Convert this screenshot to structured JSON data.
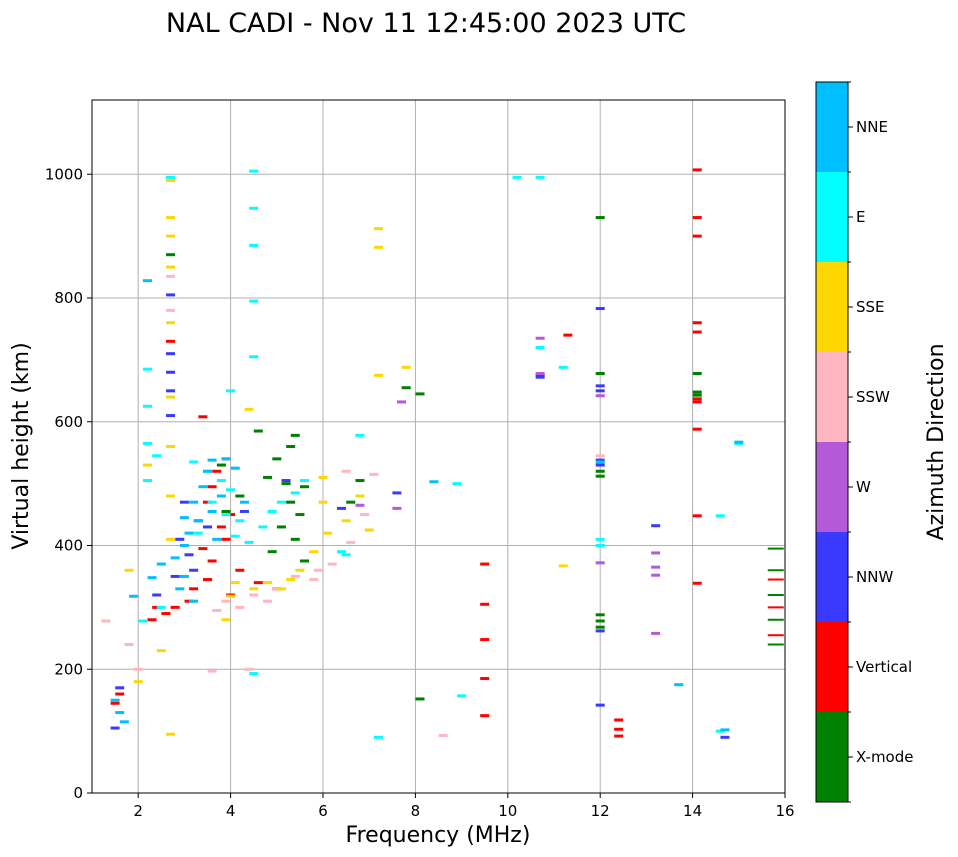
{
  "chart_data": {
    "type": "scatter",
    "title": "NAL CADI - Nov 11 12:45:00 2023 UTC",
    "xlabel": "Frequency (MHz)",
    "ylabel": "Virtual height (km)",
    "xlim": [
      1,
      16
    ],
    "ylim": [
      0,
      1120
    ],
    "xticks": [
      2,
      4,
      6,
      8,
      10,
      12,
      14,
      16
    ],
    "yticks": [
      0,
      200,
      400,
      600,
      800,
      1000
    ],
    "grid": true,
    "colorbar": {
      "label": "Azimuth Direction",
      "categories": [
        {
          "name": "X-mode",
          "color": "#008000"
        },
        {
          "name": "Vertical",
          "color": "#ff0000"
        },
        {
          "name": "NNW",
          "color": "#3a3aff"
        },
        {
          "name": "W",
          "color": "#b45ad8"
        },
        {
          "name": "SSW",
          "color": "#ffb6c1"
        },
        {
          "name": "SSE",
          "color": "#ffd700"
        },
        {
          "name": "E",
          "color": "#00ffff"
        },
        {
          "name": "NNE",
          "color": "#00bfff"
        }
      ]
    },
    "series": [
      {
        "name": "X-mode",
        "points": [
          [
            5.4,
            578
          ],
          [
            5.3,
            560
          ],
          [
            5.0,
            540
          ],
          [
            5.2,
            500
          ],
          [
            5.6,
            495
          ],
          [
            4.8,
            510
          ],
          [
            5.3,
            470
          ],
          [
            5.5,
            450
          ],
          [
            5.1,
            430
          ],
          [
            5.4,
            410
          ],
          [
            4.9,
            390
          ],
          [
            5.6,
            375
          ],
          [
            3.8,
            530
          ],
          [
            4.6,
            585
          ],
          [
            7.8,
            655
          ],
          [
            8.1,
            645
          ],
          [
            12.0,
            930
          ],
          [
            12.0,
            678
          ],
          [
            12.0,
            520
          ],
          [
            12.0,
            512
          ],
          [
            12.0,
            288
          ],
          [
            12.0,
            278
          ],
          [
            12.0,
            268
          ],
          [
            14.1,
            678
          ],
          [
            14.1,
            648
          ],
          [
            14.1,
            643
          ],
          [
            8.1,
            152
          ],
          [
            2.7,
            870
          ],
          [
            15.8,
            395
          ],
          [
            15.8,
            360
          ],
          [
            15.8,
            320
          ],
          [
            15.8,
            280
          ],
          [
            15.8,
            240
          ],
          [
            6.8,
            505
          ],
          [
            6.6,
            470
          ],
          [
            4.2,
            480
          ],
          [
            3.9,
            455
          ]
        ]
      },
      {
        "name": "Vertical",
        "points": [
          [
            3.4,
            608
          ],
          [
            3.9,
            540
          ],
          [
            3.7,
            520
          ],
          [
            3.6,
            495
          ],
          [
            3.5,
            470
          ],
          [
            4.0,
            450
          ],
          [
            3.8,
            430
          ],
          [
            3.9,
            410
          ],
          [
            3.4,
            395
          ],
          [
            3.6,
            375
          ],
          [
            4.2,
            360
          ],
          [
            3.5,
            345
          ],
          [
            3.2,
            330
          ],
          [
            4.0,
            320
          ],
          [
            3.1,
            310
          ],
          [
            2.8,
            300
          ],
          [
            2.4,
            300
          ],
          [
            2.6,
            290
          ],
          [
            2.3,
            280
          ],
          [
            4.6,
            340
          ],
          [
            5.0,
            330
          ],
          [
            2.7,
            730
          ],
          [
            9.5,
            370
          ],
          [
            9.5,
            305
          ],
          [
            9.5,
            248
          ],
          [
            9.5,
            185
          ],
          [
            9.5,
            125
          ],
          [
            11.3,
            740
          ],
          [
            12.4,
            118
          ],
          [
            12.4,
            103
          ],
          [
            12.4,
            92
          ],
          [
            14.1,
            1007
          ],
          [
            14.1,
            930
          ],
          [
            14.1,
            900
          ],
          [
            14.1,
            760
          ],
          [
            14.1,
            745
          ],
          [
            14.1,
            637
          ],
          [
            14.1,
            632
          ],
          [
            14.1,
            588
          ],
          [
            14.1,
            448
          ],
          [
            14.1,
            339
          ],
          [
            10.7,
            675
          ],
          [
            1.6,
            160
          ],
          [
            1.5,
            145
          ],
          [
            15.8,
            345
          ],
          [
            15.8,
            300
          ],
          [
            15.8,
            255
          ]
        ]
      },
      {
        "name": "NNW",
        "points": [
          [
            2.7,
            805
          ],
          [
            2.7,
            710
          ],
          [
            2.7,
            680
          ],
          [
            2.7,
            650
          ],
          [
            2.7,
            610
          ],
          [
            3.0,
            470
          ],
          [
            3.3,
            440
          ],
          [
            2.9,
            410
          ],
          [
            3.1,
            385
          ],
          [
            3.2,
            360
          ],
          [
            2.8,
            350
          ],
          [
            3.5,
            430
          ],
          [
            4.3,
            455
          ],
          [
            5.2,
            505
          ],
          [
            6.4,
            460
          ],
          [
            7.6,
            485
          ],
          [
            12.0,
            783
          ],
          [
            12.0,
            658
          ],
          [
            12.0,
            650
          ],
          [
            12.0,
            538
          ],
          [
            12.0,
            530
          ],
          [
            12.0,
            262
          ],
          [
            12.0,
            142
          ],
          [
            13.2,
            432
          ],
          [
            14.7,
            90
          ],
          [
            1.5,
            105
          ],
          [
            1.6,
            170
          ],
          [
            2.4,
            320
          ],
          [
            10.7,
            672
          ]
        ]
      },
      {
        "name": "W",
        "points": [
          [
            7.7,
            632
          ],
          [
            7.6,
            460
          ],
          [
            10.7,
            735
          ],
          [
            10.7,
            678
          ],
          [
            13.2,
            388
          ],
          [
            13.2,
            365
          ],
          [
            13.2,
            352
          ],
          [
            13.2,
            258
          ],
          [
            12.0,
            372
          ],
          [
            12.0,
            642
          ],
          [
            6.8,
            465
          ]
        ]
      },
      {
        "name": "SSW",
        "points": [
          [
            2.7,
            835
          ],
          [
            2.7,
            780
          ],
          [
            3.9,
            310
          ],
          [
            4.2,
            300
          ],
          [
            4.5,
            320
          ],
          [
            5.0,
            330
          ],
          [
            5.4,
            350
          ],
          [
            5.8,
            345
          ],
          [
            6.2,
            370
          ],
          [
            6.6,
            405
          ],
          [
            6.9,
            450
          ],
          [
            7.1,
            515
          ],
          [
            6.5,
            520
          ],
          [
            4.4,
            200
          ],
          [
            3.6,
            197
          ],
          [
            8.6,
            93
          ],
          [
            12.0,
            545
          ],
          [
            1.3,
            278
          ],
          [
            1.8,
            240
          ],
          [
            2.0,
            200
          ],
          [
            3.7,
            295
          ],
          [
            4.8,
            310
          ],
          [
            5.9,
            360
          ]
        ]
      },
      {
        "name": "SSE",
        "points": [
          [
            2.7,
            990
          ],
          [
            2.7,
            930
          ],
          [
            2.7,
            900
          ],
          [
            2.7,
            850
          ],
          [
            2.7,
            760
          ],
          [
            2.7,
            640
          ],
          [
            2.7,
            560
          ],
          [
            2.7,
            480
          ],
          [
            2.7,
            410
          ],
          [
            2.7,
            95
          ],
          [
            2.2,
            530
          ],
          [
            4.4,
            620
          ],
          [
            4.1,
            340
          ],
          [
            4.5,
            330
          ],
          [
            4.8,
            340
          ],
          [
            5.1,
            330
          ],
          [
            5.3,
            345
          ],
          [
            5.5,
            360
          ],
          [
            5.8,
            390
          ],
          [
            6.1,
            420
          ],
          [
            6.0,
            470
          ],
          [
            6.0,
            510
          ],
          [
            6.5,
            440
          ],
          [
            6.8,
            480
          ],
          [
            7.0,
            425
          ],
          [
            7.2,
            675
          ],
          [
            7.2,
            912
          ],
          [
            7.2,
            882
          ],
          [
            7.8,
            688
          ],
          [
            11.2,
            367
          ],
          [
            3.9,
            280
          ],
          [
            4.0,
            318
          ],
          [
            1.8,
            360
          ],
          [
            2.0,
            180
          ],
          [
            2.5,
            230
          ]
        ]
      },
      {
        "name": "E",
        "points": [
          [
            2.7,
            995
          ],
          [
            4.5,
            1005
          ],
          [
            4.5,
            945
          ],
          [
            4.5,
            885
          ],
          [
            4.5,
            795
          ],
          [
            4.5,
            705
          ],
          [
            4.5,
            193
          ],
          [
            2.2,
            685
          ],
          [
            2.2,
            625
          ],
          [
            2.2,
            565
          ],
          [
            2.2,
            505
          ],
          [
            2.4,
            545
          ],
          [
            3.2,
            535
          ],
          [
            3.5,
            520
          ],
          [
            3.8,
            505
          ],
          [
            4.0,
            490
          ],
          [
            3.6,
            470
          ],
          [
            3.9,
            450
          ],
          [
            4.2,
            440
          ],
          [
            3.3,
            420
          ],
          [
            4.1,
            415
          ],
          [
            4.4,
            405
          ],
          [
            4.7,
            430
          ],
          [
            4.9,
            455
          ],
          [
            5.1,
            470
          ],
          [
            5.4,
            485
          ],
          [
            5.6,
            505
          ],
          [
            4.0,
            650
          ],
          [
            6.8,
            578
          ],
          [
            7.2,
            90
          ],
          [
            8.9,
            500
          ],
          [
            9.0,
            157
          ],
          [
            10.2,
            995
          ],
          [
            10.7,
            995
          ],
          [
            10.7,
            720
          ],
          [
            11.2,
            688
          ],
          [
            12.0,
            410
          ],
          [
            12.0,
            400
          ],
          [
            14.6,
            448
          ],
          [
            14.6,
            100
          ],
          [
            15.0,
            565
          ],
          [
            2.5,
            300
          ],
          [
            2.1,
            278
          ],
          [
            6.4,
            390
          ],
          [
            6.5,
            385
          ]
        ]
      },
      {
        "name": "NNE",
        "points": [
          [
            2.2,
            828
          ],
          [
            2.3,
            348
          ],
          [
            2.5,
            370
          ],
          [
            2.8,
            380
          ],
          [
            3.0,
            400
          ],
          [
            3.1,
            420
          ],
          [
            3.0,
            445
          ],
          [
            3.2,
            470
          ],
          [
            3.4,
            495
          ],
          [
            3.5,
            520
          ],
          [
            3.6,
            538
          ],
          [
            3.9,
            540
          ],
          [
            4.1,
            525
          ],
          [
            3.8,
            480
          ],
          [
            3.6,
            455
          ],
          [
            3.3,
            440
          ],
          [
            4.3,
            470
          ],
          [
            3.7,
            410
          ],
          [
            3.0,
            350
          ],
          [
            2.9,
            330
          ],
          [
            3.2,
            310
          ],
          [
            8.4,
            503
          ],
          [
            12.0,
            535
          ],
          [
            13.7,
            175
          ],
          [
            14.7,
            102
          ],
          [
            15.0,
            567
          ],
          [
            1.9,
            318
          ],
          [
            1.5,
            150
          ],
          [
            1.6,
            130
          ],
          [
            1.7,
            115
          ]
        ]
      }
    ]
  }
}
